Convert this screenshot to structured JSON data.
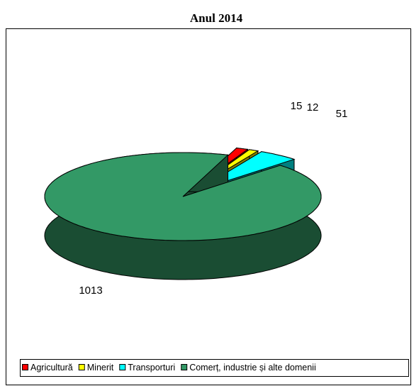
{
  "chart_data": {
    "type": "pie",
    "title": "Anul 2014",
    "categories": [
      "Agricultură",
      "Minerit",
      "Transporturi",
      "Comerț, industrie și alte domenii"
    ],
    "values": [
      15,
      12,
      51,
      1013
    ],
    "colors": [
      "#ff0000",
      "#ffff00",
      "#00ffff",
      "#339966"
    ],
    "legend": "bottom"
  }
}
